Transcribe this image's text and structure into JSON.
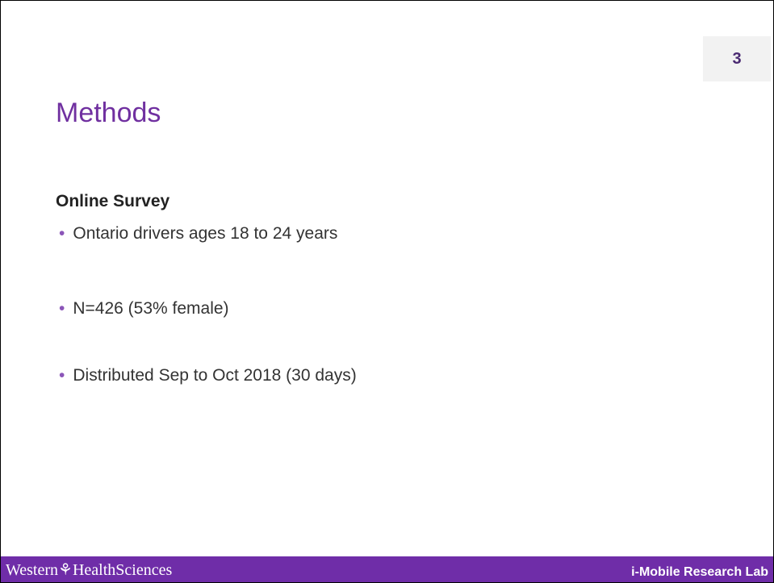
{
  "page_number": "3",
  "title": "Methods",
  "subheading": "Online Survey",
  "bullets": [
    "Ontario drivers ages 18 to 24 years",
    "N=426 (53% female)",
    "Distributed Sep to Oct 2018 (30 days)"
  ],
  "footer": {
    "left": "Western⚘HealthSciences",
    "right": "i-Mobile Research Lab"
  }
}
